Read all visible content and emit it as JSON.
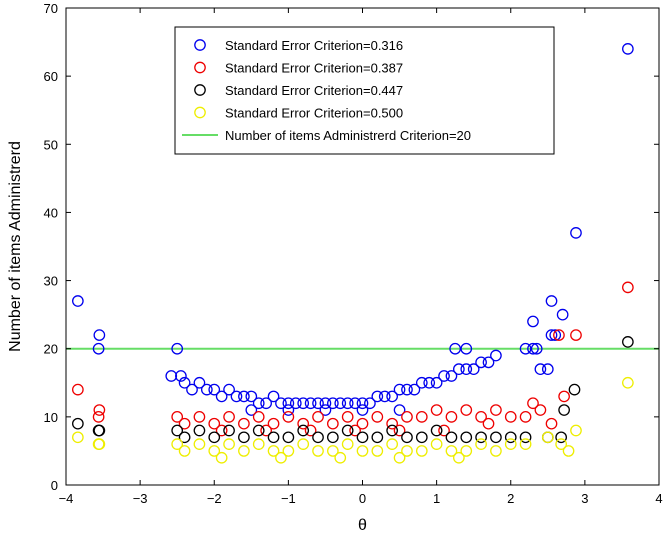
{
  "chart_data": {
    "type": "scatter",
    "title": "",
    "xlabel": "θ",
    "ylabel": "Number of items Administrerd",
    "xlim": [
      -4,
      4
    ],
    "ylim": [
      0,
      70
    ],
    "xticks": [
      -4,
      -3,
      -2,
      -1,
      0,
      1,
      2,
      3,
      4
    ],
    "yticks": [
      0,
      10,
      20,
      30,
      40,
      50,
      60,
      70
    ],
    "xtick_labels": [
      "−4",
      "−3",
      "−2",
      "−1",
      "0",
      "1",
      "2",
      "3",
      "4"
    ],
    "ytick_labels": [
      "0",
      "10",
      "20",
      "30",
      "40",
      "50",
      "60",
      "70"
    ],
    "grid": false,
    "legend_position": "top-center",
    "reference_line": {
      "name": "Number of items Administrerd Criterion=20",
      "y": 20,
      "color": "#66dd66"
    },
    "series": [
      {
        "name": "Standard Error Criterion=0.316",
        "color": "#0000ee",
        "points": [
          [
            -3.84,
            27
          ],
          [
            -3.55,
            22
          ],
          [
            -3.56,
            20
          ],
          [
            -2.5,
            20
          ],
          [
            -2.58,
            16
          ],
          [
            -2.45,
            16
          ],
          [
            -2.4,
            15
          ],
          [
            -2.3,
            14
          ],
          [
            -2.2,
            15
          ],
          [
            -2.1,
            14
          ],
          [
            -2.0,
            14
          ],
          [
            -1.9,
            13
          ],
          [
            -1.8,
            14
          ],
          [
            -1.7,
            13
          ],
          [
            -1.6,
            13
          ],
          [
            -1.5,
            13
          ],
          [
            -1.4,
            12
          ],
          [
            -1.3,
            12
          ],
          [
            -1.2,
            13
          ],
          [
            -1.1,
            12
          ],
          [
            -1.0,
            12
          ],
          [
            -0.9,
            12
          ],
          [
            -0.8,
            12
          ],
          [
            -0.7,
            12
          ],
          [
            -0.6,
            12
          ],
          [
            -0.5,
            12
          ],
          [
            -0.4,
            12
          ],
          [
            -0.3,
            12
          ],
          [
            -0.2,
            12
          ],
          [
            -0.1,
            12
          ],
          [
            0.0,
            12
          ],
          [
            0.1,
            12
          ],
          [
            0.2,
            13
          ],
          [
            0.3,
            13
          ],
          [
            0.4,
            13
          ],
          [
            0.5,
            14
          ],
          [
            0.6,
            14
          ],
          [
            0.7,
            14
          ],
          [
            0.8,
            15
          ],
          [
            0.9,
            15
          ],
          [
            1.0,
            15
          ],
          [
            1.1,
            16
          ],
          [
            1.2,
            16
          ],
          [
            1.3,
            17
          ],
          [
            1.4,
            17
          ],
          [
            1.5,
            17
          ],
          [
            1.6,
            18
          ],
          [
            1.7,
            18
          ],
          [
            1.8,
            19
          ],
          [
            1.25,
            20
          ],
          [
            1.4,
            20
          ],
          [
            2.2,
            20
          ],
          [
            2.3,
            20
          ],
          [
            2.35,
            20
          ],
          [
            2.4,
            17
          ],
          [
            2.5,
            17
          ],
          [
            2.55,
            22
          ],
          [
            2.6,
            22
          ],
          [
            2.55,
            27
          ],
          [
            2.3,
            24
          ],
          [
            2.7,
            25
          ],
          [
            2.88,
            37
          ],
          [
            3.58,
            64
          ],
          [
            -1.5,
            11
          ],
          [
            -1.0,
            11
          ],
          [
            -0.5,
            11
          ],
          [
            0.0,
            11
          ],
          [
            0.5,
            11
          ]
        ]
      },
      {
        "name": "Standard Error Criterion=0.387",
        "color": "#ee0000",
        "points": [
          [
            -3.84,
            14
          ],
          [
            -3.55,
            11
          ],
          [
            -3.56,
            10
          ],
          [
            -2.5,
            10
          ],
          [
            -2.4,
            9
          ],
          [
            -2.2,
            10
          ],
          [
            -2.0,
            9
          ],
          [
            -1.8,
            10
          ],
          [
            -1.6,
            9
          ],
          [
            -1.4,
            10
          ],
          [
            -1.2,
            9
          ],
          [
            -1.0,
            10
          ],
          [
            -0.8,
            9
          ],
          [
            -0.6,
            10
          ],
          [
            -0.4,
            9
          ],
          [
            -0.2,
            10
          ],
          [
            0.0,
            9
          ],
          [
            0.2,
            10
          ],
          [
            0.4,
            9
          ],
          [
            0.6,
            10
          ],
          [
            0.8,
            10
          ],
          [
            1.0,
            11
          ],
          [
            1.2,
            10
          ],
          [
            1.4,
            11
          ],
          [
            1.6,
            10
          ],
          [
            1.8,
            11
          ],
          [
            2.0,
            10
          ],
          [
            2.2,
            10
          ],
          [
            2.3,
            12
          ],
          [
            2.4,
            11
          ],
          [
            2.55,
            9
          ],
          [
            2.65,
            22
          ],
          [
            2.72,
            13
          ],
          [
            2.88,
            22
          ],
          [
            3.58,
            29
          ],
          [
            -1.9,
            8
          ],
          [
            -1.3,
            8
          ],
          [
            -0.7,
            8
          ],
          [
            -0.1,
            8
          ],
          [
            0.5,
            8
          ],
          [
            1.1,
            8
          ],
          [
            1.7,
            9
          ]
        ]
      },
      {
        "name": "Standard Error Criterion=0.447",
        "color": "#000000",
        "points": [
          [
            -3.84,
            9
          ],
          [
            -3.55,
            8
          ],
          [
            -3.56,
            8
          ],
          [
            -2.5,
            8
          ],
          [
            -2.4,
            7
          ],
          [
            -2.2,
            8
          ],
          [
            -2.0,
            7
          ],
          [
            -1.8,
            8
          ],
          [
            -1.6,
            7
          ],
          [
            -1.4,
            8
          ],
          [
            -1.2,
            7
          ],
          [
            -1.0,
            7
          ],
          [
            -0.8,
            8
          ],
          [
            -0.6,
            7
          ],
          [
            -0.4,
            7
          ],
          [
            -0.2,
            8
          ],
          [
            0.0,
            7
          ],
          [
            0.2,
            7
          ],
          [
            0.4,
            8
          ],
          [
            0.6,
            7
          ],
          [
            0.8,
            7
          ],
          [
            1.0,
            8
          ],
          [
            1.2,
            7
          ],
          [
            1.4,
            7
          ],
          [
            1.6,
            7
          ],
          [
            1.8,
            7
          ],
          [
            2.0,
            7
          ],
          [
            2.2,
            7
          ],
          [
            2.5,
            7
          ],
          [
            2.68,
            7
          ],
          [
            2.72,
            11
          ],
          [
            2.86,
            14
          ],
          [
            3.58,
            21
          ]
        ]
      },
      {
        "name": "Standard Error Criterion=0.500",
        "color": "#eeee00",
        "points": [
          [
            -3.84,
            7
          ],
          [
            -3.55,
            6
          ],
          [
            -3.56,
            6
          ],
          [
            -2.5,
            6
          ],
          [
            -2.4,
            5
          ],
          [
            -2.2,
            6
          ],
          [
            -2.0,
            5
          ],
          [
            -1.8,
            6
          ],
          [
            -1.6,
            5
          ],
          [
            -1.4,
            6
          ],
          [
            -1.2,
            5
          ],
          [
            -1.0,
            5
          ],
          [
            -0.8,
            6
          ],
          [
            -0.6,
            5
          ],
          [
            -0.4,
            5
          ],
          [
            -0.2,
            6
          ],
          [
            0.0,
            5
          ],
          [
            0.2,
            5
          ],
          [
            0.4,
            6
          ],
          [
            0.6,
            5
          ],
          [
            0.8,
            5
          ],
          [
            1.0,
            6
          ],
          [
            1.2,
            5
          ],
          [
            1.4,
            5
          ],
          [
            1.6,
            6
          ],
          [
            1.8,
            5
          ],
          [
            2.0,
            6
          ],
          [
            2.2,
            6
          ],
          [
            2.5,
            7
          ],
          [
            2.68,
            6
          ],
          [
            2.78,
            5
          ],
          [
            2.88,
            8
          ],
          [
            3.58,
            15
          ],
          [
            -1.9,
            4
          ],
          [
            -1.1,
            4
          ],
          [
            -0.3,
            4
          ],
          [
            0.5,
            4
          ],
          [
            1.3,
            4
          ]
        ]
      }
    ]
  }
}
